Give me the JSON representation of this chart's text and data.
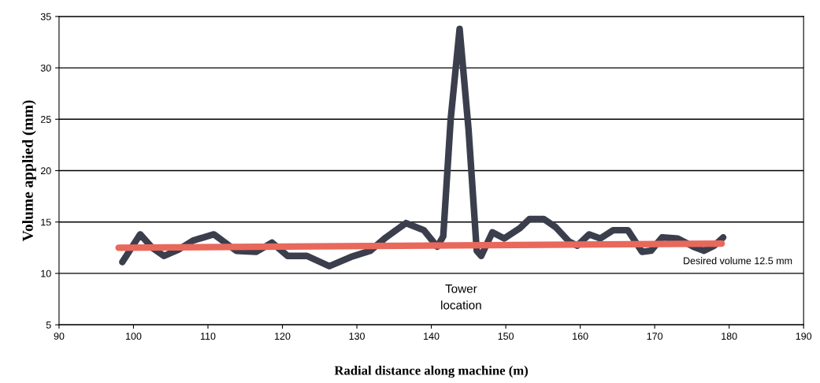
{
  "chart_data": {
    "type": "line",
    "xlabel": "Radial distance along machine (m)",
    "ylabel": "Volume applied (mm)",
    "xlim": [
      90,
      190
    ],
    "xticks": [
      90,
      100,
      110,
      120,
      130,
      140,
      150,
      160,
      170,
      180,
      190
    ],
    "ylim": [
      5,
      35
    ],
    "yticks": [
      5,
      10,
      15,
      20,
      25,
      30,
      35
    ],
    "grid": "y",
    "legend": false,
    "series": [
      {
        "color": "#3b3e4c",
        "x": [
          98.5,
          100.9,
          102.5,
          104.1,
          106,
          108,
          110.8,
          113.8,
          116.5,
          118.6,
          120.7,
          123.3,
          126.3,
          129.2,
          131.8,
          133.9,
          136.6,
          139,
          140.8,
          141.6,
          142.6,
          143.8,
          145,
          146.1,
          146.7,
          148.2,
          149.8,
          151.9,
          153.2,
          155.1,
          156.7,
          158.5,
          159.6,
          161.2,
          162.7,
          164.4,
          166.4,
          168.3,
          169.5,
          171,
          173.1,
          175.2,
          176.6,
          178,
          179.2
        ],
        "values": [
          11.1,
          13.8,
          12.5,
          11.7,
          12.3,
          13.2,
          13.8,
          12.2,
          12.1,
          13.0,
          11.7,
          11.7,
          10.7,
          11.6,
          12.2,
          13.5,
          14.9,
          14.2,
          12.6,
          13.6,
          25,
          33.8,
          24,
          12.2,
          11.7,
          14.0,
          13.4,
          14.4,
          15.3,
          15.3,
          14.5,
          13.1,
          12.7,
          13.8,
          13.4,
          14.2,
          14.2,
          12.1,
          12.2,
          13.5,
          13.4,
          12.6,
          12.2,
          12.7,
          13.5
        ]
      },
      {
        "type": "line",
        "color": "#e8685c",
        "x": [
          98,
          179
        ],
        "values": [
          12.5,
          12.9
        ]
      }
    ],
    "annotations": [
      "Tower\nlocation",
      "Desired volume 12.5 mm"
    ]
  }
}
